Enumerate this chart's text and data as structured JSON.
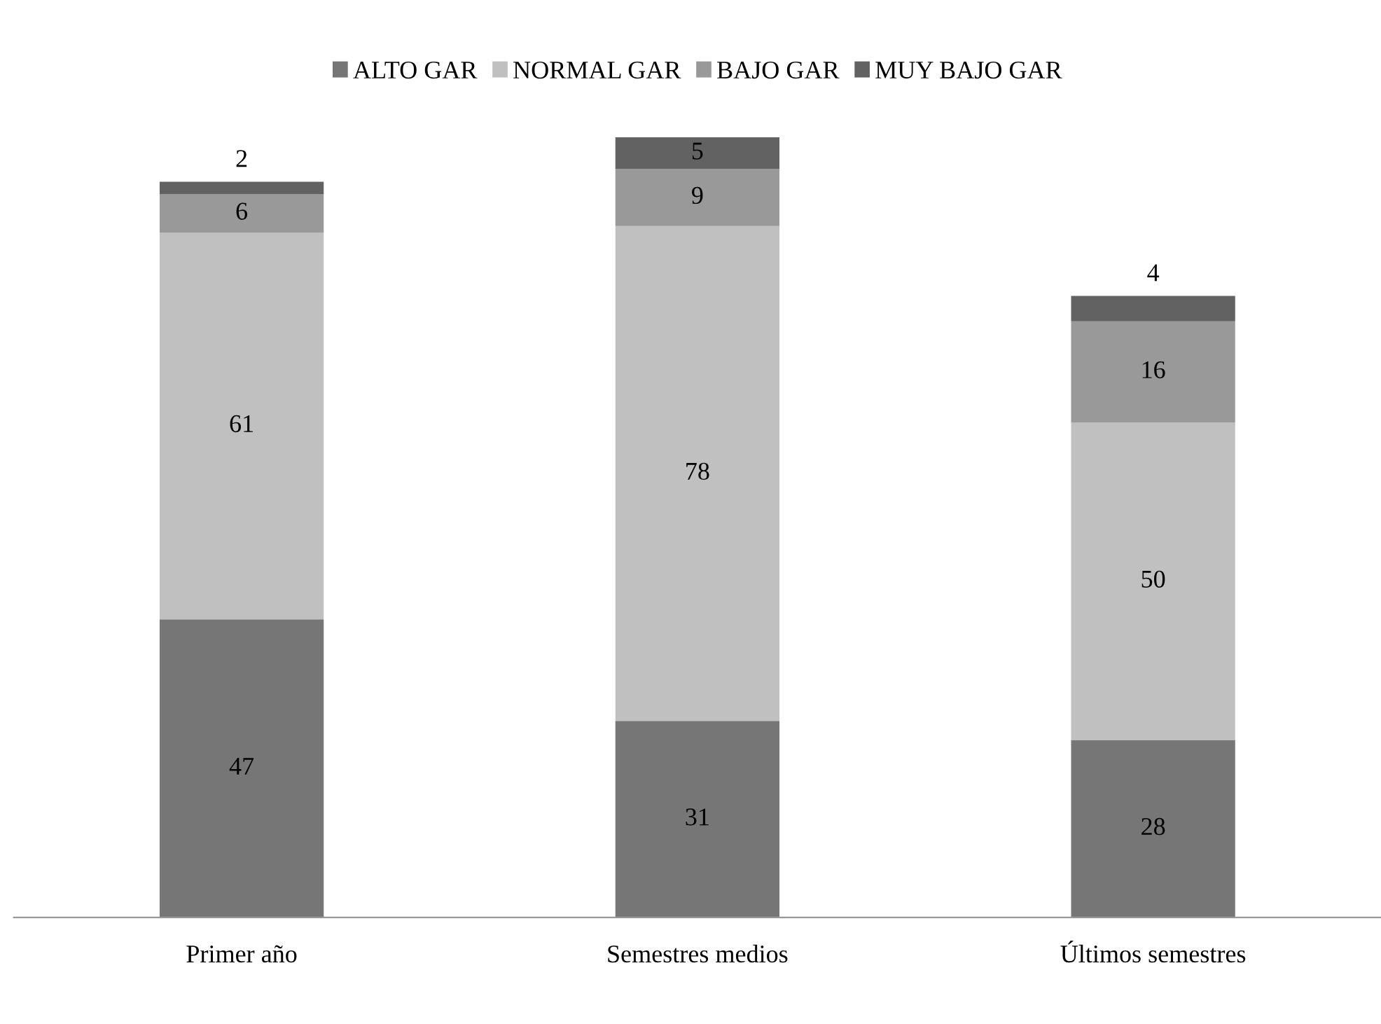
{
  "chart_data": {
    "type": "bar",
    "stacked": true,
    "data_labels": true,
    "categories": [
      "Primer año",
      "Semestres medios",
      "Últimos semestres"
    ],
    "series": [
      {
        "name": "ALTO GAR",
        "color": "#767676",
        "values": [
          47,
          31,
          28
        ]
      },
      {
        "name": "NORMAL GAR",
        "color": "#c0c0c0",
        "values": [
          61,
          78,
          50
        ]
      },
      {
        "name": "BAJO GAR",
        "color": "#999999",
        "values": [
          6,
          9,
          16
        ]
      },
      {
        "name": "MUY BAJO GAR",
        "color": "#626262",
        "values": [
          2,
          5,
          4
        ]
      }
    ],
    "legend": "top",
    "grid": false
  }
}
